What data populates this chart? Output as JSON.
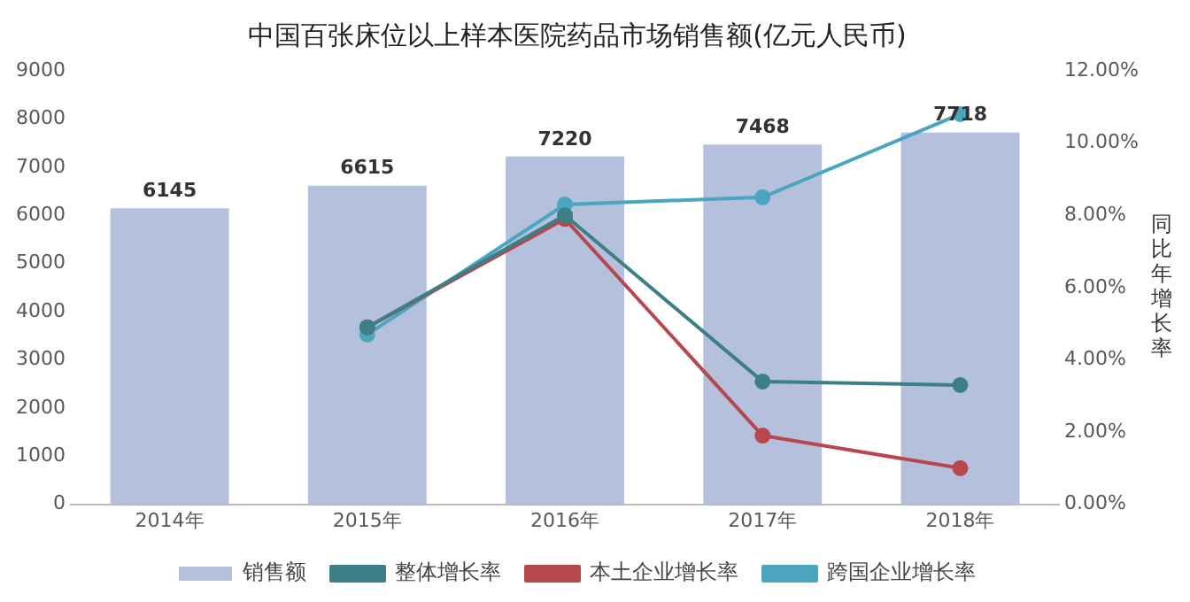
{
  "chart_data": {
    "type": "bar",
    "title": "中国百张床位以上样本医院药品市场销售额(亿元人民币)",
    "y2label": "同比年增长率",
    "categories": [
      "2014年",
      "2015年",
      "2016年",
      "2017年",
      "2018年"
    ],
    "series": [
      {
        "name": "销售额",
        "color": "#b4c0dc",
        "values": [
          6145,
          6615,
          7220,
          7468,
          7718
        ],
        "value_labels": [
          "6145",
          "6615",
          "7220",
          "7468",
          "7718"
        ]
      },
      {
        "name": "整体增长率",
        "type": "line",
        "axis": "y2",
        "color": "#3d7f86",
        "values": [
          null,
          4.9,
          8.0,
          3.4,
          3.3
        ]
      },
      {
        "name": "本土企业增长率",
        "type": "line",
        "axis": "y2",
        "color": "#b8464e",
        "values": [
          null,
          4.9,
          7.9,
          1.9,
          1.0
        ]
      },
      {
        "name": "跨国企业增长率",
        "type": "line",
        "axis": "y2",
        "color": "#4aa5c0",
        "values": [
          null,
          4.7,
          8.3,
          8.5,
          10.8
        ]
      }
    ],
    "ylim": [
      0,
      9000
    ],
    "yticks": [
      0,
      1000,
      2000,
      3000,
      4000,
      5000,
      6000,
      7000,
      8000,
      9000
    ],
    "y2lim": [
      0,
      12
    ],
    "y2ticks": [
      {
        "value": 0,
        "label": "0.00%"
      },
      {
        "value": 2,
        "label": "2.00%"
      },
      {
        "value": 4,
        "label": "4.00%"
      },
      {
        "value": 6,
        "label": "6.00%"
      },
      {
        "value": 8,
        "label": "8.00%"
      },
      {
        "value": 10,
        "label": "10.00%"
      },
      {
        "value": 12,
        "label": "12.00%"
      }
    ],
    "grid": false,
    "legend": "bottom",
    "marker": "circle"
  }
}
